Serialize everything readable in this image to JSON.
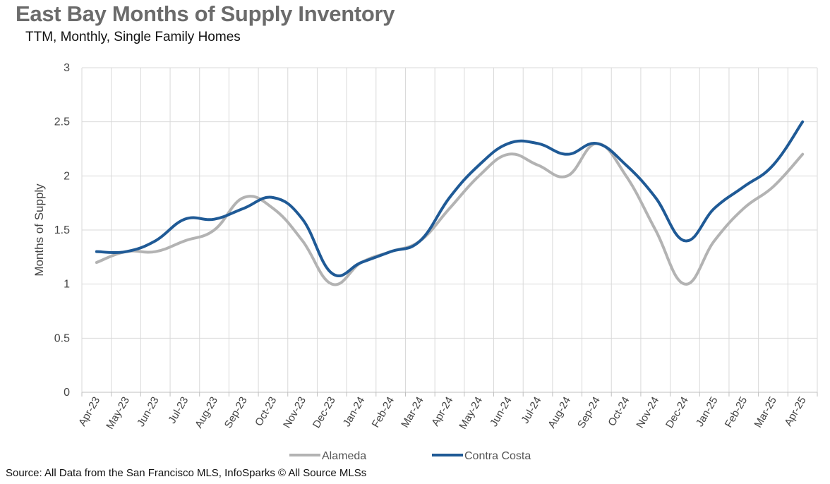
{
  "title": "East Bay Months of Supply Inventory",
  "subtitle": "TTM, Monthly, Single Family Homes",
  "source": "Source: All Data from the San Francisco MLS, InfoSparks © All Source MLSs",
  "chart_data": {
    "type": "line",
    "title": "East Bay Months of Supply Inventory",
    "subtitle": "TTM, Monthly, Single Family Homes",
    "xlabel": "",
    "ylabel": "Months of Supply",
    "ylim": [
      0,
      3
    ],
    "yticks": [
      "0",
      "0.5",
      "1",
      "1.5",
      "2",
      "2.5",
      "3"
    ],
    "grid": true,
    "legend_position": "bottom",
    "categories": [
      "Apr-23",
      "May-23",
      "Jun-23",
      "Jul-23",
      "Aug-23",
      "Sep-23",
      "Oct-23",
      "Nov-23",
      "Dec-23",
      "Jan-24",
      "Feb-24",
      "Mar-24",
      "Apr-24",
      "May-24",
      "Jun-24",
      "Jul-24",
      "Aug-24",
      "Sep-24",
      "Oct-24",
      "Nov-24",
      "Dec-24",
      "Jan-25",
      "Feb-25",
      "Mar-25",
      "Apr-25"
    ],
    "series": [
      {
        "name": "Alameda",
        "color": "#b3b3b3",
        "values": [
          1.2,
          1.3,
          1.3,
          1.4,
          1.5,
          1.8,
          1.7,
          1.4,
          1.0,
          1.2,
          1.3,
          1.4,
          1.7,
          2.0,
          2.2,
          2.1,
          2.0,
          2.3,
          2.0,
          1.5,
          1.0,
          1.4,
          1.7,
          1.9,
          2.2
        ]
      },
      {
        "name": "Contra Costa",
        "color": "#1f5a96",
        "values": [
          1.3,
          1.3,
          1.4,
          1.6,
          1.6,
          1.7,
          1.8,
          1.6,
          1.1,
          1.2,
          1.3,
          1.4,
          1.8,
          2.1,
          2.3,
          2.3,
          2.2,
          2.3,
          2.1,
          1.8,
          1.4,
          1.7,
          1.9,
          2.1,
          2.5
        ]
      }
    ]
  }
}
